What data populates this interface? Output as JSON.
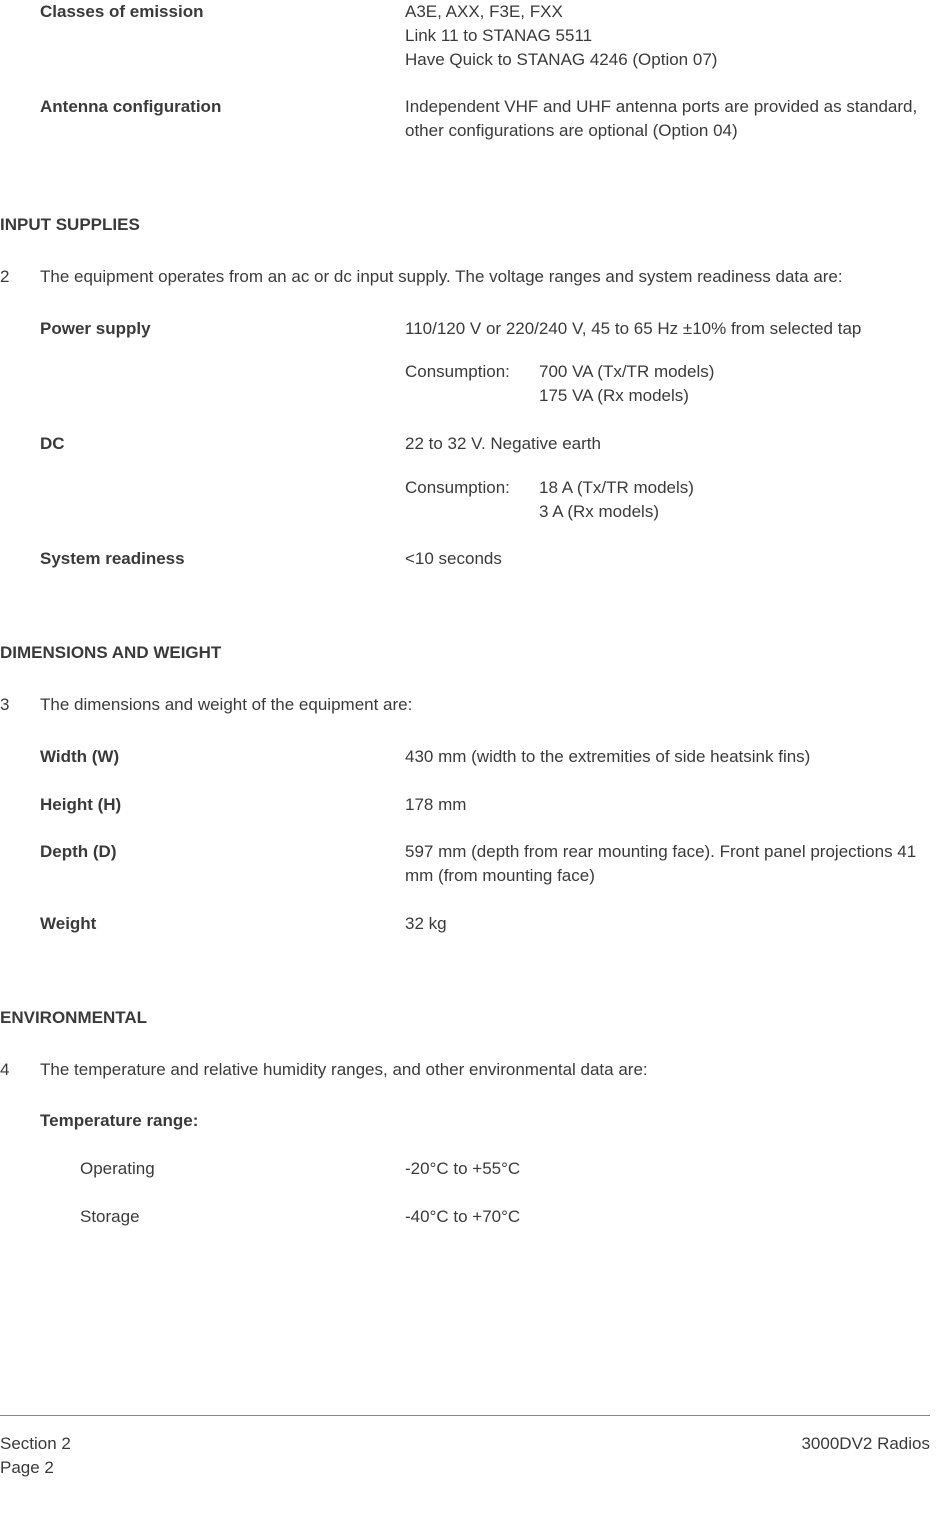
{
  "top_specs": [
    {
      "label": "Classes of emission",
      "lines": [
        "A3E, AXX, F3E, FXX",
        "Link 11 to STANAG 5511",
        "Have Quick to STANAG 4246 (Option 07)"
      ]
    },
    {
      "label": "Antenna configuration",
      "lines": [
        "Independent VHF and UHF antenna ports are provided as standard, other configurations are optional (Option 04)"
      ]
    }
  ],
  "sections": {
    "input_supplies": {
      "heading": "INPUT SUPPLIES",
      "num": "2",
      "intro": "The equipment operates from an ac or dc input supply.  The voltage ranges and system readiness data are:",
      "power_supply": {
        "label": "Power supply",
        "value": "110/120 V or 220/240 V, 45 to 65 Hz ±10% from selected tap",
        "consumption_label": "Consumption:",
        "consumption_lines": [
          "700 VA (Tx/TR models)",
          "175 VA (Rx models)"
        ]
      },
      "dc": {
        "label": "DC",
        "value": "22 to 32 V.  Negative earth",
        "consumption_label": "Consumption:",
        "consumption_lines": [
          "18 A (Tx/TR models)",
          "3 A (Rx models)"
        ]
      },
      "system_readiness": {
        "label": "System readiness",
        "value": "<10 seconds"
      }
    },
    "dimensions": {
      "heading": "DIMENSIONS AND WEIGHT",
      "num": "3",
      "intro": "The dimensions and weight of the equipment are:",
      "rows": [
        {
          "label": "Width (W)",
          "value": "430 mm (width to the extremities of side heatsink fins)"
        },
        {
          "label": "Height (H)",
          "value": "178 mm"
        },
        {
          "label": "Depth (D)",
          "value": "597 mm (depth from rear mounting face).  Front panel projections 41 mm (from mounting face)"
        },
        {
          "label": "Weight",
          "value": "32 kg"
        }
      ]
    },
    "environmental": {
      "heading": "ENVIRONMENTAL",
      "num": "4",
      "intro": "The temperature and relative humidity ranges, and other environmental data are:",
      "temp_label": "Temperature range:",
      "rows": [
        {
          "label": "Operating",
          "value": "-20°C to +55°C"
        },
        {
          "label": "Storage",
          "value": "-40°C to +70°C"
        }
      ]
    }
  },
  "footer": {
    "section": "Section 2",
    "page": "Page 2",
    "title": "3000DV2 Radios"
  }
}
